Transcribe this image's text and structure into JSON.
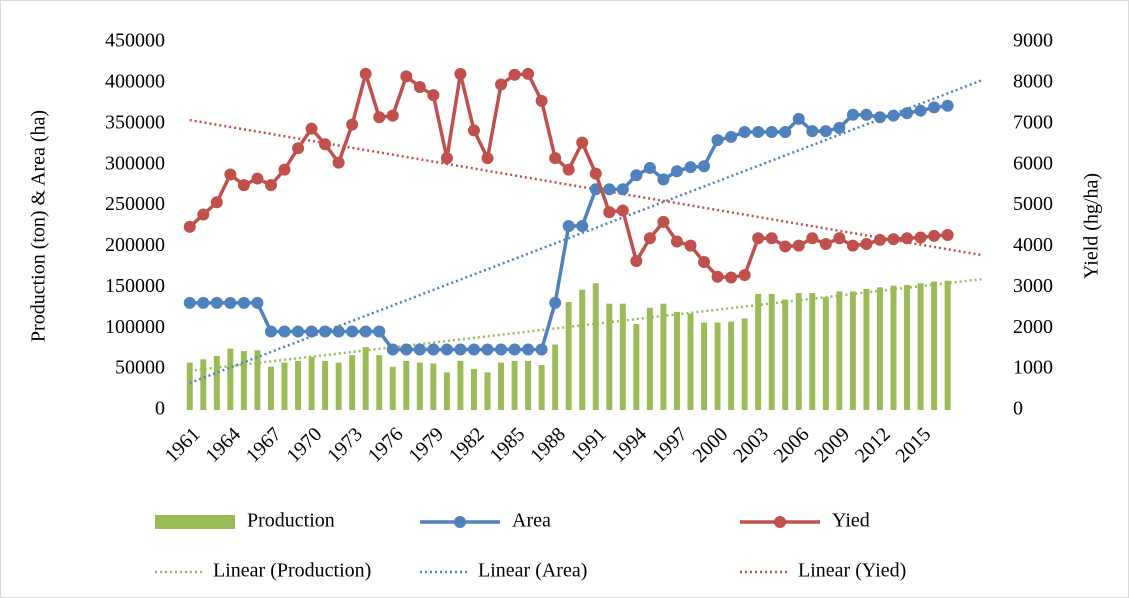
{
  "chart_data": {
    "type": "combo",
    "y_label": "Production (ton) & Area (ha)",
    "y2_label": "Yield (hg/ha)",
    "x": [
      1961,
      1962,
      1963,
      1964,
      1965,
      1966,
      1967,
      1968,
      1969,
      1970,
      1971,
      1972,
      1973,
      1974,
      1975,
      1976,
      1977,
      1978,
      1979,
      1980,
      1981,
      1982,
      1983,
      1984,
      1985,
      1986,
      1987,
      1988,
      1989,
      1990,
      1991,
      1992,
      1993,
      1994,
      1995,
      1996,
      1997,
      1998,
      1999,
      2000,
      2001,
      2002,
      2003,
      2004,
      2005,
      2006,
      2007,
      2008,
      2009,
      2010,
      2011,
      2012,
      2013,
      2014,
      2015,
      2016,
      2017
    ],
    "xlim": [
      1960.5,
      2020.5
    ],
    "xticks": [
      1961,
      1964,
      1967,
      1970,
      1973,
      1976,
      1979,
      1982,
      1985,
      1988,
      1991,
      1994,
      1997,
      2000,
      2003,
      2006,
      2009,
      2012,
      2015
    ],
    "ylim": [
      0,
      450000
    ],
    "yticks": [
      0,
      50000,
      100000,
      150000,
      200000,
      250000,
      300000,
      350000,
      400000,
      450000
    ],
    "y2lim": [
      0,
      9000
    ],
    "y2ticks": [
      0,
      1000,
      2000,
      3000,
      4000,
      5000,
      6000,
      7000,
      8000,
      9000
    ],
    "series": [
      {
        "name": "Production",
        "type": "bar",
        "color": "#9bbb59",
        "values": [
          58000,
          62000,
          66000,
          75000,
          72000,
          73000,
          53000,
          58000,
          60000,
          65000,
          60000,
          58000,
          67000,
          77000,
          67000,
          53000,
          60000,
          58000,
          57000,
          46000,
          60000,
          50000,
          46000,
          58000,
          60000,
          60000,
          55000,
          80000,
          132000,
          147000,
          155000,
          130000,
          130000,
          105000,
          125000,
          130000,
          120000,
          118000,
          107000,
          107000,
          108000,
          112000,
          142000,
          142000,
          135000,
          143000,
          143000,
          138000,
          145000,
          145000,
          148000,
          150000,
          152000,
          153000,
          155000,
          157000,
          158000
        ]
      },
      {
        "name": "Area",
        "type": "line",
        "color": "#4f81bd",
        "values": [
          131000,
          131000,
          131000,
          131000,
          131000,
          131000,
          96000,
          96000,
          96000,
          96000,
          96000,
          96000,
          96000,
          96000,
          96000,
          74000,
          74000,
          74000,
          74000,
          74000,
          74000,
          74000,
          74000,
          74000,
          74000,
          74000,
          74000,
          131000,
          225000,
          225000,
          270000,
          270000,
          270000,
          287000,
          296000,
          282000,
          292000,
          297000,
          298000,
          330000,
          334000,
          340000,
          340000,
          340000,
          340000,
          356000,
          341000,
          341000,
          345000,
          361000,
          361000,
          358000,
          360000,
          363000,
          366000,
          370000,
          372000
        ]
      },
      {
        "name": "Yied",
        "type": "line",
        "axis": "y2",
        "color": "#c0504d",
        "values": [
          4480,
          4780,
          5080,
          5760,
          5500,
          5660,
          5500,
          5880,
          6400,
          6880,
          6500,
          6050,
          6980,
          8220,
          7160,
          7200,
          8160,
          7900,
          7700,
          6160,
          8220,
          6840,
          6160,
          7960,
          8200,
          8220,
          7560,
          6160,
          5880,
          6540,
          5780,
          4840,
          4880,
          3640,
          4200,
          4600,
          4120,
          4020,
          3620,
          3260,
          3240,
          3300,
          4200,
          4200,
          4000,
          4020,
          4200,
          4060,
          4200,
          4020,
          4060,
          4160,
          4180,
          4200,
          4220,
          4260,
          4280
        ]
      }
    ],
    "trendlines": [
      {
        "name": "Linear (Production)",
        "color": "#9bbb59",
        "x": [
          1961,
          2019.5
        ],
        "values": [
          48000,
          160000
        ]
      },
      {
        "name": "Linear (Area)",
        "color": "#4f81bd",
        "x": [
          1961,
          2019.5
        ],
        "values": [
          33000,
          403000
        ]
      },
      {
        "name": "Linear (Yied)",
        "axis": "y2",
        "color": "#c0504d",
        "x": [
          1961,
          2019.5
        ],
        "values": [
          7090,
          3790
        ]
      }
    ]
  }
}
